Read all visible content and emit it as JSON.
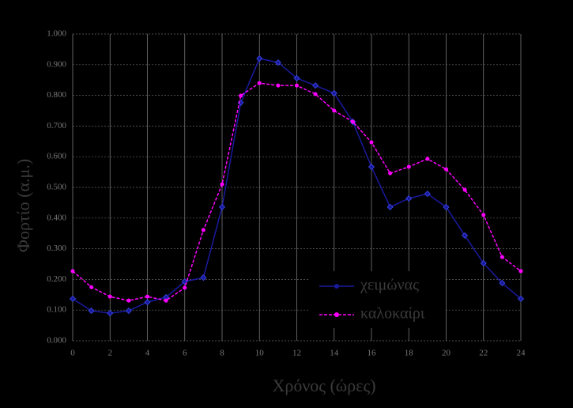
{
  "chart_data": {
    "type": "line",
    "x_label": "Χρόνος (ώρες)",
    "y_label": "Φορτίο (α.μ.)",
    "x": [
      0,
      1,
      2,
      3,
      4,
      5,
      6,
      7,
      8,
      9,
      10,
      11,
      12,
      13,
      14,
      15,
      16,
      17,
      18,
      19,
      20,
      21,
      22,
      23,
      24
    ],
    "series": [
      {
        "name": "χειμώνας",
        "color": "#1a1aa0",
        "values": [
          0.137,
          0.098,
          0.09,
          0.098,
          0.126,
          0.142,
          0.193,
          0.206,
          0.436,
          0.776,
          0.92,
          0.907,
          0.856,
          0.832,
          0.807,
          0.714,
          0.567,
          0.436,
          0.464,
          0.479,
          0.436,
          0.343,
          0.253,
          0.188,
          0.137
        ]
      },
      {
        "name": "καλοκαίρι",
        "color": "#ff00ff",
        "values": [
          0.227,
          0.175,
          0.144,
          0.131,
          0.144,
          0.131,
          0.173,
          0.361,
          0.51,
          0.799,
          0.84,
          0.832,
          0.832,
          0.804,
          0.75,
          0.714,
          0.647,
          0.546,
          0.567,
          0.593,
          0.559,
          0.492,
          0.41,
          0.273,
          0.227
        ]
      }
    ],
    "xlim": [
      0,
      24
    ],
    "xticks": [
      0,
      2,
      4,
      6,
      8,
      10,
      12,
      14,
      16,
      18,
      20,
      22,
      24
    ],
    "ylim": [
      0,
      1
    ],
    "yticks": [
      {
        "value": 0,
        "label": "0.000"
      },
      {
        "value": 0.1,
        "label": "0.100"
      },
      {
        "value": 0.2,
        "label": "0.200"
      },
      {
        "value": 0.3,
        "label": "0.300"
      },
      {
        "value": 0.4,
        "label": "0.400"
      },
      {
        "value": 0.5,
        "label": "0.500"
      },
      {
        "value": 0.6,
        "label": "0.600"
      },
      {
        "value": 0.7,
        "label": "0.700"
      },
      {
        "value": 0.8,
        "label": "0.800"
      },
      {
        "value": 0.9,
        "label": "0.900"
      },
      {
        "value": 1,
        "label": "1.000"
      }
    ],
    "grid": true
  }
}
